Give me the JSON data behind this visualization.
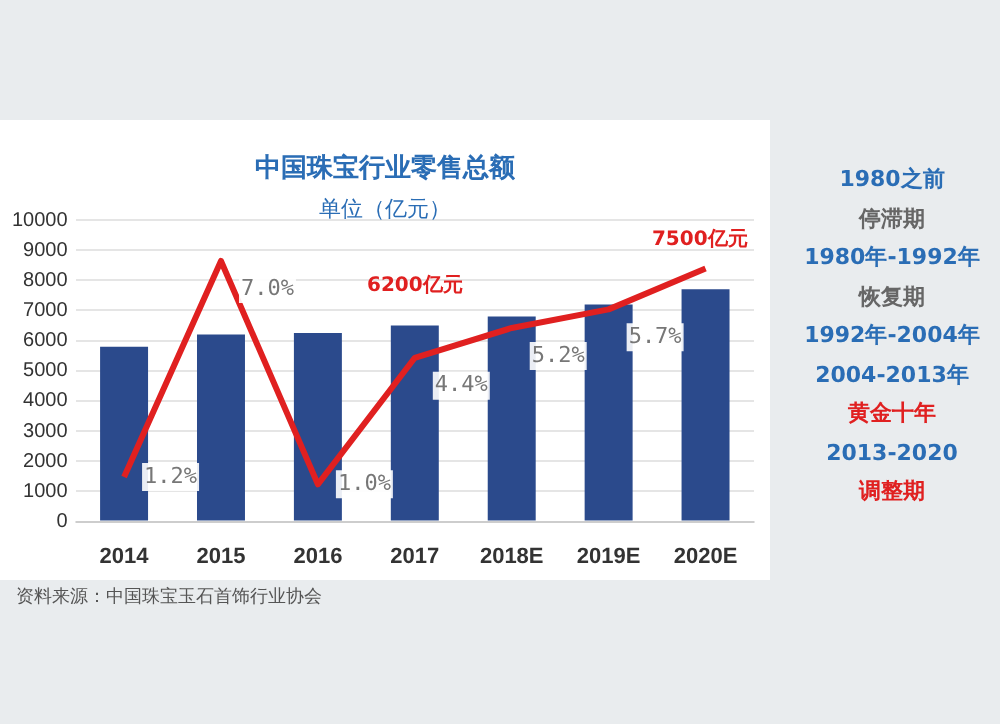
{
  "chart_data": {
    "type": "bar",
    "title": "中国珠宝行业零售总额",
    "subtitle": "单位（亿元）",
    "categories": [
      "2014",
      "2015",
      "2016",
      "2017",
      "2018E",
      "2019E",
      "2020E"
    ],
    "series": [
      {
        "color": "#2b4a8c",
        "values": [
          5800,
          6200,
          6250,
          6500,
          6800,
          7200,
          7700
        ]
      },
      {
        "type": "line",
        "axis": "y2",
        "color": "#e02020",
        "values": [
          1.2,
          7.0,
          1.0,
          4.4,
          5.2,
          5.7,
          6.8
        ],
        "value_labels": [
          "1.2%",
          "7.0%",
          "1.0%",
          "4.4%",
          "5.2%",
          "5.7%",
          null
        ]
      }
    ],
    "ylim": [
      0,
      10000
    ],
    "yticks": [
      0,
      1000,
      2000,
      3000,
      4000,
      5000,
      6000,
      7000,
      8000,
      9000,
      10000
    ],
    "y2lim": [
      0,
      8.1
    ],
    "grid": "y",
    "legend": false,
    "marker": "none",
    "annotations": [
      "6200亿元",
      "7500亿元",
      "资料来源：中国珠宝玉石首饰行业协会",
      "1980之前",
      "停滞期",
      "1980年-1992年",
      "恢复期",
      "1992年-2004年",
      "2004-2013年",
      "黄金十年",
      "2013-2020",
      "调整期"
    ]
  }
}
